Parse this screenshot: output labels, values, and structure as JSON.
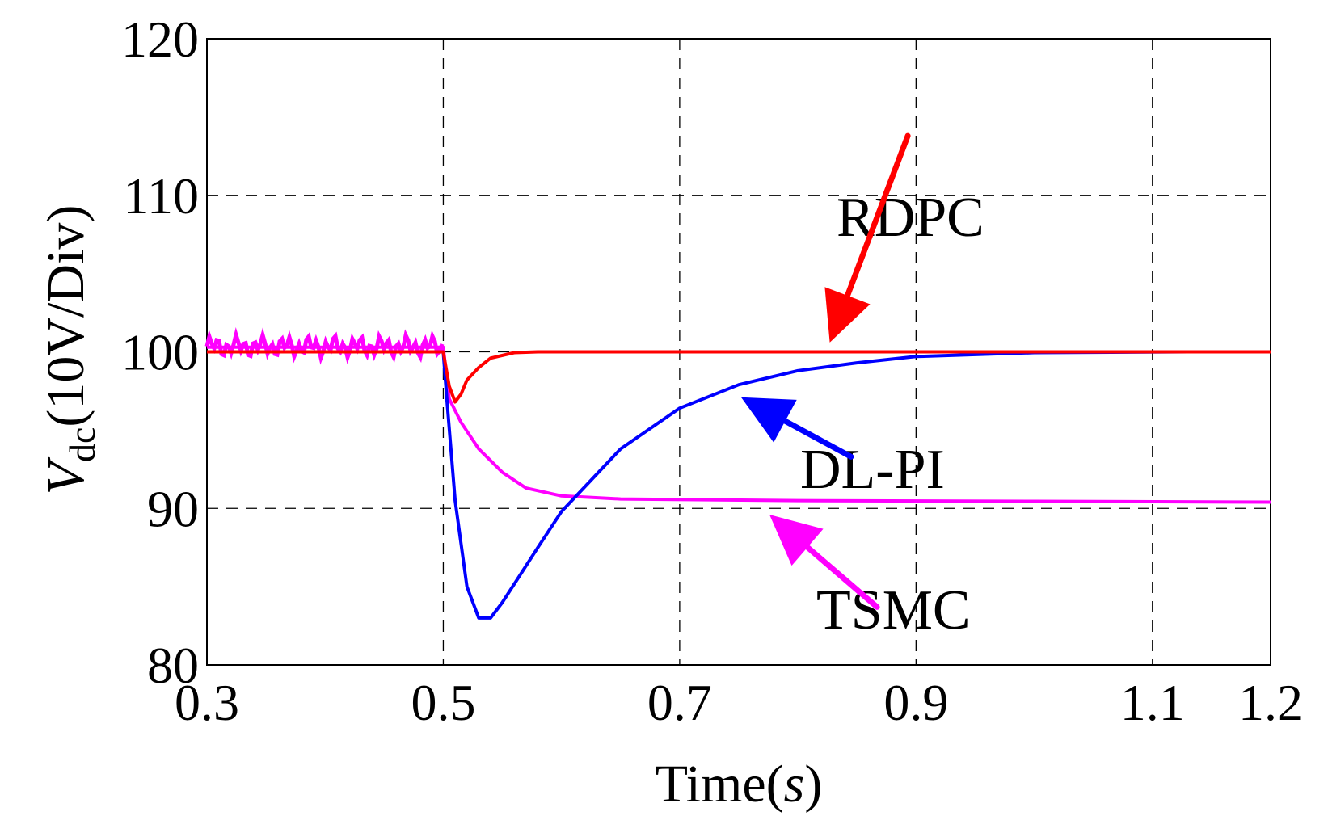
{
  "chart_data": {
    "type": "line",
    "title": "",
    "xlabel": "Time",
    "xlabel_unit": "s",
    "ylabel_symbol": "V",
    "ylabel_subscript": "dc",
    "ylabel_suffix": "(10V/Div)",
    "xlim": [
      0.3,
      1.2
    ],
    "ylim": [
      80,
      120
    ],
    "xticks": [
      0.3,
      0.5,
      0.7,
      0.9,
      1.1,
      1.2
    ],
    "xtick_labels": [
      "0.3",
      "0.5",
      "0.7",
      "0.9",
      "1.1",
      "1.2"
    ],
    "yticks": [
      80,
      90,
      100,
      110,
      120
    ],
    "ytick_labels": [
      "80",
      "90",
      "100",
      "110",
      "120"
    ],
    "grid": "dashed",
    "series": [
      {
        "name": "TSMC",
        "color": "#ff00ff",
        "points": [
          [
            0.3,
            100.3
          ],
          [
            0.5,
            100.3
          ],
          [
            0.505,
            97.0
          ],
          [
            0.515,
            95.5
          ],
          [
            0.53,
            93.8
          ],
          [
            0.55,
            92.3
          ],
          [
            0.57,
            91.3
          ],
          [
            0.6,
            90.8
          ],
          [
            0.65,
            90.6
          ],
          [
            0.8,
            90.5
          ],
          [
            1.0,
            90.45
          ],
          [
            1.2,
            90.4
          ]
        ]
      },
      {
        "name": "DL-PI",
        "color": "#0000ff",
        "points": [
          [
            0.5,
            100.0
          ],
          [
            0.503,
            97.0
          ],
          [
            0.51,
            90.5
          ],
          [
            0.52,
            85.0
          ],
          [
            0.53,
            83.0
          ],
          [
            0.54,
            83.0
          ],
          [
            0.55,
            84.0
          ],
          [
            0.58,
            87.5
          ],
          [
            0.6,
            89.8
          ],
          [
            0.65,
            93.8
          ],
          [
            0.7,
            96.4
          ],
          [
            0.75,
            97.9
          ],
          [
            0.8,
            98.8
          ],
          [
            0.85,
            99.3
          ],
          [
            0.9,
            99.7
          ],
          [
            1.0,
            99.95
          ],
          [
            1.13,
            100.0
          ]
        ]
      },
      {
        "name": "RDPC",
        "color": "#ff0000",
        "points": [
          [
            0.3,
            100.0
          ],
          [
            0.5,
            100.0
          ],
          [
            0.505,
            97.8
          ],
          [
            0.51,
            96.8
          ],
          [
            0.515,
            97.3
          ],
          [
            0.52,
            98.2
          ],
          [
            0.53,
            99.0
          ],
          [
            0.54,
            99.6
          ],
          [
            0.56,
            99.95
          ],
          [
            0.58,
            100.0
          ],
          [
            1.2,
            100.0
          ]
        ]
      }
    ],
    "annotations": [
      {
        "text": "RDPC",
        "color": "#ff0000"
      },
      {
        "text": "DL-PI",
        "color": "#0000ff"
      },
      {
        "text": "TSMC",
        "color": "#ff00ff"
      }
    ]
  }
}
